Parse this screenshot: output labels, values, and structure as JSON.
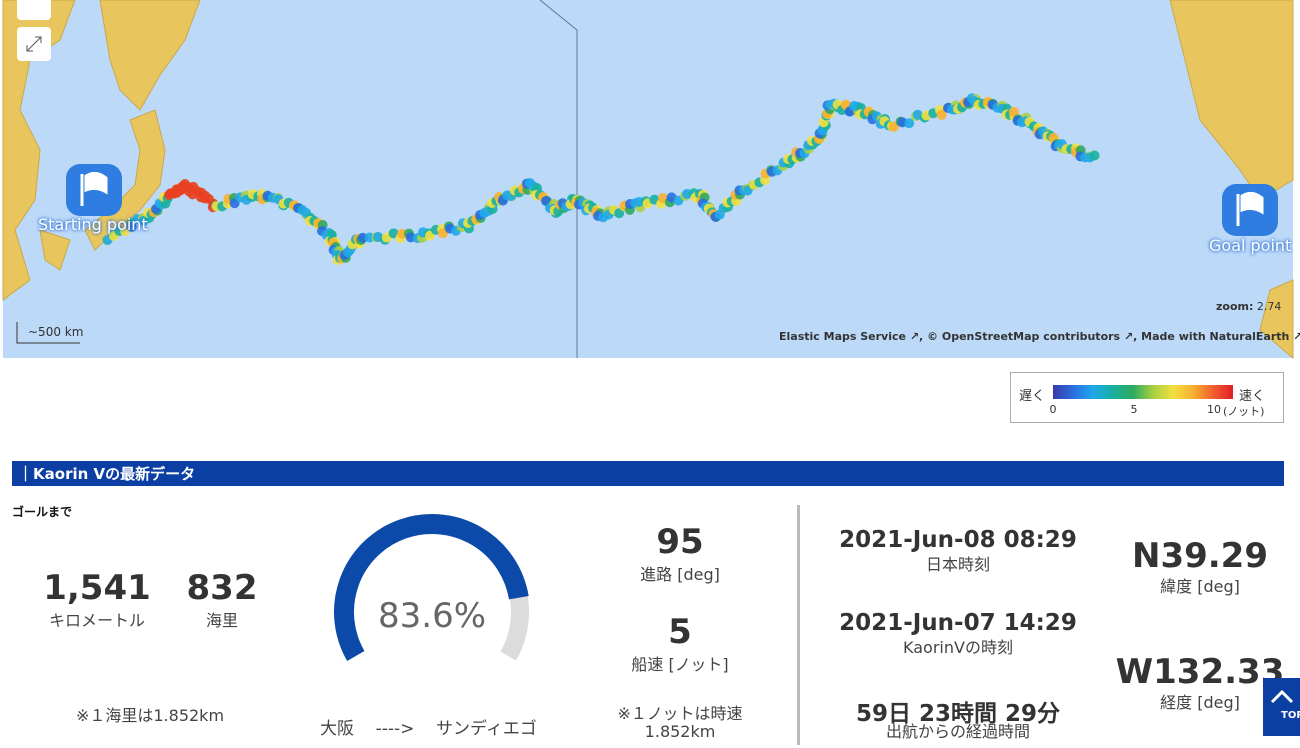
{
  "map": {
    "scale_label": "~500 km",
    "start_label": "Starting point",
    "goal_label": "Goal point",
    "zoom_label": "zoom:",
    "zoom_value": "2.74",
    "attribution": [
      "Elastic Maps Service",
      ", © OpenStreetMap contributors",
      ", Made with NaturalEarth"
    ]
  },
  "legend": {
    "slow": "遅く",
    "fast": "速く",
    "ticks": [
      "0",
      "5",
      "10"
    ],
    "unit": "(ノット)"
  },
  "section_title": "Kaorin Vの最新データ",
  "to_goal": {
    "label": "ゴールまで",
    "km": "1,541",
    "km_label": "キロメートル",
    "nm": "832",
    "nm_label": "海里",
    "note": "※１海里は1.852km"
  },
  "progress": {
    "value": 83.6,
    "label": "83.6%",
    "from": "大阪",
    "arrow": "---->",
    "to": "サンディエゴ"
  },
  "course": {
    "value": "95",
    "label": "進路 [deg]"
  },
  "speed": {
    "value": "5",
    "label": "船速 [ノット]",
    "note": [
      "※１ノットは時速",
      "1.852km"
    ]
  },
  "times": {
    "jst": "2021-Jun-08 08:29",
    "jst_label": "日本時刻",
    "boat": "2021-Jun-07 14:29",
    "boat_label": "KaorinVの時刻",
    "elapsed": "59日 23時間 29分",
    "elapsed_label": "出航からの経過時間"
  },
  "position": {
    "lat": "N39.29",
    "lat_label": "緯度 [deg]",
    "lon": "W132.33",
    "lon_label": "経度 [deg]"
  },
  "top_button": "TOP"
}
